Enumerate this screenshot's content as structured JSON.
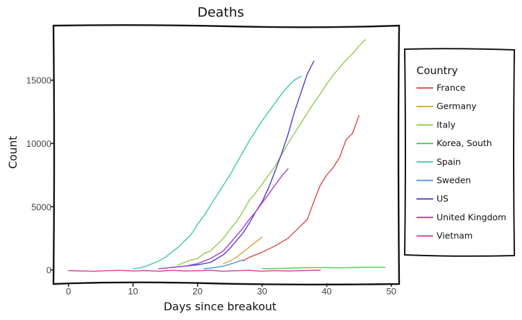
{
  "chart_data": {
    "type": "line",
    "title": "Deaths",
    "xlabel": "Days since breakout",
    "ylabel": "Count",
    "xlim": [
      -2,
      51
    ],
    "ylim": [
      -1000,
      19200
    ],
    "x_ticks": [
      0,
      10,
      20,
      30,
      40,
      50
    ],
    "y_ticks": [
      0,
      5000,
      10000,
      15000
    ],
    "x_tick_labels": [
      "0",
      "10",
      "20",
      "30",
      "40",
      "50"
    ],
    "y_tick_labels": [
      "0",
      "5000",
      "10000",
      "15000"
    ],
    "grid": false,
    "legend": {
      "title": "Country",
      "position": "right"
    },
    "series": [
      {
        "name": "France",
        "color": "#d9534f",
        "points": [
          [
            27,
            700
          ],
          [
            28,
            1000
          ],
          [
            30,
            1400
          ],
          [
            32,
            1900
          ],
          [
            34,
            2500
          ],
          [
            35,
            3000
          ],
          [
            36,
            3500
          ],
          [
            37,
            4000
          ],
          [
            38,
            5400
          ],
          [
            39,
            6700
          ],
          [
            40,
            7500
          ],
          [
            41,
            8100
          ],
          [
            42,
            8900
          ],
          [
            43,
            10300
          ],
          [
            44,
            10800
          ],
          [
            45,
            12200
          ]
        ]
      },
      {
        "name": "Germany",
        "color": "#ccaa44",
        "points": [
          [
            24,
            500
          ],
          [
            25,
            700
          ],
          [
            26,
            1000
          ],
          [
            27,
            1400
          ],
          [
            28,
            1800
          ],
          [
            29,
            2200
          ],
          [
            30,
            2600
          ]
        ]
      },
      {
        "name": "Italy",
        "color": "#99cc55",
        "points": [
          [
            17,
            400
          ],
          [
            18,
            600
          ],
          [
            19,
            800
          ],
          [
            20,
            900
          ],
          [
            21,
            1300
          ],
          [
            22,
            1500
          ],
          [
            23,
            2000
          ],
          [
            24,
            2500
          ],
          [
            25,
            3200
          ],
          [
            26,
            3800
          ],
          [
            27,
            4600
          ],
          [
            28,
            5500
          ],
          [
            29,
            6100
          ],
          [
            30,
            6800
          ],
          [
            31,
            7500
          ],
          [
            32,
            8200
          ],
          [
            33,
            9100
          ],
          [
            34,
            10000
          ],
          [
            35,
            10800
          ],
          [
            36,
            11600
          ],
          [
            37,
            12400
          ],
          [
            38,
            13200
          ],
          [
            39,
            13900
          ],
          [
            40,
            14700
          ],
          [
            41,
            15400
          ],
          [
            42,
            16000
          ],
          [
            43,
            16600
          ],
          [
            44,
            17100
          ],
          [
            45,
            17700
          ],
          [
            46,
            18200
          ]
        ]
      },
      {
        "name": "Korea, South",
        "color": "#55cc55",
        "points": [
          [
            30,
            100
          ],
          [
            33,
            120
          ],
          [
            36,
            170
          ],
          [
            38,
            180
          ],
          [
            40,
            180
          ],
          [
            42,
            160
          ],
          [
            44,
            190
          ],
          [
            46,
            210
          ],
          [
            48,
            210
          ],
          [
            49,
            210
          ]
        ]
      },
      {
        "name": "Spain",
        "color": "#44ccaa",
        "points": [
          [
            10,
            100
          ],
          [
            11,
            150
          ],
          [
            12,
            300
          ],
          [
            13,
            500
          ],
          [
            14,
            700
          ],
          [
            15,
            1000
          ],
          [
            16,
            1400
          ],
          [
            17,
            1800
          ],
          [
            18,
            2300
          ],
          [
            19,
            2800
          ],
          [
            20,
            3600
          ],
          [
            21,
            4300
          ],
          [
            22,
            5100
          ],
          [
            23,
            5900
          ],
          [
            24,
            6700
          ],
          [
            25,
            7500
          ],
          [
            26,
            8400
          ],
          [
            27,
            9300
          ],
          [
            28,
            10200
          ],
          [
            29,
            11000
          ],
          [
            30,
            11800
          ],
          [
            31,
            12500
          ],
          [
            32,
            13200
          ],
          [
            33,
            13900
          ],
          [
            34,
            14500
          ],
          [
            35,
            15000
          ],
          [
            36,
            15300
          ]
        ]
      },
      {
        "name": "Sweden",
        "color": "#5599dd",
        "points": [
          [
            21,
            100
          ],
          [
            22,
            150
          ],
          [
            23,
            220
          ],
          [
            24,
            300
          ],
          [
            25,
            450
          ],
          [
            26,
            620
          ],
          [
            27,
            800
          ]
        ]
      },
      {
        "name": "US",
        "color": "#5544cc",
        "points": [
          [
            16,
            200
          ],
          [
            18,
            300
          ],
          [
            20,
            400
          ],
          [
            22,
            600
          ],
          [
            24,
            1200
          ],
          [
            25,
            1700
          ],
          [
            26,
            2300
          ],
          [
            27,
            2900
          ],
          [
            28,
            3700
          ],
          [
            29,
            4600
          ],
          [
            30,
            5400
          ],
          [
            31,
            6500
          ],
          [
            32,
            7800
          ],
          [
            33,
            9200
          ],
          [
            34,
            10700
          ],
          [
            35,
            12500
          ],
          [
            36,
            14000
          ],
          [
            37,
            15500
          ],
          [
            38,
            16500
          ]
        ]
      },
      {
        "name": "United Kingdom",
        "color": "#aa44cc",
        "points": [
          [
            14,
            100
          ],
          [
            16,
            200
          ],
          [
            18,
            300
          ],
          [
            20,
            500
          ],
          [
            22,
            900
          ],
          [
            24,
            1500
          ],
          [
            25,
            2100
          ],
          [
            26,
            2700
          ],
          [
            27,
            3300
          ],
          [
            28,
            4000
          ],
          [
            29,
            4600
          ],
          [
            30,
            5300
          ],
          [
            31,
            6000
          ],
          [
            32,
            6700
          ],
          [
            33,
            7400
          ],
          [
            34,
            8000
          ]
        ]
      },
      {
        "name": "Vietnam",
        "color": "#dd4499",
        "points": [
          [
            0,
            -50
          ],
          [
            2,
            -80
          ],
          [
            4,
            -100
          ],
          [
            6,
            -60
          ],
          [
            8,
            -30
          ],
          [
            10,
            -80
          ],
          [
            12,
            -50
          ],
          [
            14,
            -100
          ],
          [
            16,
            -30
          ],
          [
            18,
            -80
          ],
          [
            20,
            -60
          ],
          [
            22,
            -30
          ],
          [
            24,
            -100
          ],
          [
            26,
            -60
          ],
          [
            28,
            -30
          ],
          [
            30,
            -100
          ],
          [
            32,
            -50
          ],
          [
            34,
            -80
          ],
          [
            36,
            -60
          ],
          [
            38,
            -30
          ],
          [
            39,
            -20
          ]
        ]
      }
    ]
  }
}
